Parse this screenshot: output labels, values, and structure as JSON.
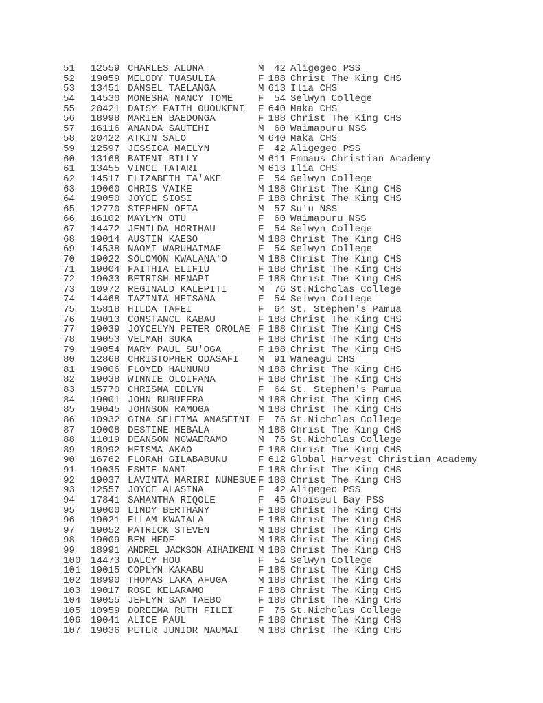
{
  "rows": [
    [
      "51",
      "12559",
      "CHARLES ALUNA",
      "M",
      "42",
      "Aligegeo PSS"
    ],
    [
      "52",
      "19059",
      "MELODY TUASULIA",
      "F",
      "188",
      "Christ The King CHS"
    ],
    [
      "53",
      "13451",
      "DANSEL TAELANGA",
      "M",
      "613",
      "Ilia CHS"
    ],
    [
      "54",
      "14530",
      "MONESHA NANCY TOME",
      "F",
      "54",
      "Selwyn College"
    ],
    [
      "55",
      "20421",
      "DAISY FAITH OUOUKENI",
      "F",
      "640",
      "Maka CHS"
    ],
    [
      "56",
      "18998",
      "MARIEN BAEDONGA",
      "F",
      "188",
      "Christ The King CHS"
    ],
    [
      "57",
      "16116",
      "ANANDA SAUTEHI",
      "M",
      "60",
      "Waimapuru NSS"
    ],
    [
      "58",
      "20422",
      "ATKIN SALO",
      "M",
      "640",
      "Maka CHS"
    ],
    [
      "59",
      "12597",
      "JESSICA MAELYN",
      "F",
      "42",
      "Aligegeo PSS"
    ],
    [
      "60",
      "13168",
      "BATENI BILLY",
      "M",
      "611",
      "Emmaus Christian Academy"
    ],
    [
      "61",
      "13455",
      "VINCE TATARI",
      "M",
      "613",
      "Ilia CHS"
    ],
    [
      "62",
      "14517",
      "ELIZABETH TA'AKE",
      "F",
      "54",
      "Selwyn College"
    ],
    [
      "63",
      "19060",
      "CHRIS VAIKE",
      "M",
      "188",
      "Christ The King CHS"
    ],
    [
      "64",
      "19050",
      "JOYCE SIOSI",
      "F",
      "188",
      "Christ The King CHS"
    ],
    [
      "65",
      "12770",
      "STEPHEN OETA",
      "M",
      "57",
      "Su'u NSS"
    ],
    [
      "66",
      "16102",
      "MAYLYN OTU",
      "F",
      "60",
      "Waimapuru NSS"
    ],
    [
      "67",
      "14472",
      "JENILDA HORIHAU",
      "F",
      "54",
      "Selwyn College"
    ],
    [
      "68",
      "19014",
      "AUSTIN KAESO",
      "M",
      "188",
      "Christ The King CHS"
    ],
    [
      "69",
      "14538",
      "NAOMI WARUHAIMAE",
      "F",
      "54",
      "Selwyn College"
    ],
    [
      "70",
      "19022",
      "SOLOMON KWALANA'O",
      "M",
      "188",
      "Christ The King CHS"
    ],
    [
      "71",
      "19004",
      "FAITHIA ELIFIU",
      "F",
      "188",
      "Christ The King CHS"
    ],
    [
      "72",
      "19033",
      "BETRISH MENAPI",
      "F",
      "188",
      "Christ The King CHS"
    ],
    [
      "73",
      "10972",
      "REGINALD KALEPITI",
      "M",
      "76",
      "St.Nicholas College"
    ],
    [
      "74",
      "14468",
      "TAZINIA HEISANA",
      "F",
      "54",
      "Selwyn College"
    ],
    [
      "75",
      "15818",
      "HILDA TAFEI",
      "F",
      "64",
      "St. Stephen's Pamua"
    ],
    [
      "76",
      "19013",
      "CONSTANCE KABAU",
      "F",
      "188",
      "Christ The King CHS"
    ],
    [
      "77",
      "19039",
      "JOYCELYN PETER OROLAE",
      "F",
      "188",
      "Christ The King CHS"
    ],
    [
      "78",
      "19053",
      "VELMAH SUKA",
      "F",
      "188",
      "Christ The King CHS"
    ],
    [
      "79",
      "19054",
      "MARY PAUL SU'OGA",
      "F",
      "188",
      "Christ The King CHS"
    ],
    [
      "80",
      "12868",
      "CHRISTOPHER ODASAFI",
      "M",
      "91",
      "Waneagu CHS"
    ],
    [
      "81",
      "19006",
      "FLOYED HAUNUNU",
      "M",
      "188",
      "Christ The King CHS"
    ],
    [
      "82",
      "19038",
      "WINNIE OLOIFANA",
      "F",
      "188",
      "Christ The King CHS"
    ],
    [
      "83",
      "15770",
      "CHRISMA EDLYN",
      "F",
      "64",
      "St. Stephen's Pamua"
    ],
    [
      "84",
      "19001",
      "JOHN BUBUFERA",
      "M",
      "188",
      "Christ The King CHS"
    ],
    [
      "85",
      "19045",
      "JOHNSON RAMOGA",
      "M",
      "188",
      "Christ The King CHS"
    ],
    [
      "86",
      "10932",
      "GINA SELEIMA ANASEINI",
      "F",
      "76",
      "St.Nicholas College"
    ],
    [
      "87",
      "19008",
      "DESTINE HEBALA",
      "M",
      "188",
      "Christ The King CHS"
    ],
    [
      "88",
      "11019",
      "DEANSON NGWAERAMO",
      "M",
      "76",
      "St.Nicholas College"
    ],
    [
      "89",
      "18992",
      "HEISMA AKAO",
      "F",
      "188",
      "Christ The King CHS"
    ],
    [
      "90",
      "16762",
      "FLORAH GILABABUNU",
      "F",
      "612",
      "Global Harvest Christian Academy"
    ],
    [
      "91",
      "19035",
      "ESMIE NANI",
      "F",
      "188",
      "Christ The King CHS"
    ],
    [
      "92",
      "19037",
      "LAVINTA MARIRI NUNESUE",
      "F",
      "188",
      "Christ The King CHS"
    ],
    [
      "93",
      "12557",
      "JOYCE ALASINA",
      "F",
      "42",
      "Aligegeo PSS"
    ],
    [
      "94",
      "17841",
      "SAMANTHA RIQOLE",
      "F",
      "45",
      "Choiseul Bay PSS"
    ],
    [
      "95",
      "19000",
      "LINDY BERTHANY",
      "F",
      "188",
      "Christ The King CHS"
    ],
    [
      "96",
      "19021",
      "ELLAM KWAIALA",
      "F",
      "188",
      "Christ The King CHS"
    ],
    [
      "97",
      "19052",
      "PATRICK STEVEN",
      "M",
      "188",
      "Christ The King CHS"
    ],
    [
      "98",
      "19009",
      "BEN HEDE",
      "M",
      "188",
      "Christ The King CHS"
    ],
    [
      "99",
      "18991",
      "ANDREL JACKSON AIHAIKENI",
      "M",
      "188",
      "Christ The King CHS"
    ],
    [
      "100",
      "14473",
      "DALCY HOU",
      "F",
      "54",
      "Selwyn College"
    ],
    [
      "101",
      "19015",
      "COPLYN KAKABU",
      "F",
      "188",
      "Christ The King CHS"
    ],
    [
      "102",
      "18990",
      "THOMAS LAKA AFUGA",
      "M",
      "188",
      "Christ The King CHS"
    ],
    [
      "103",
      "19017",
      "ROSE KELARAMO",
      "F",
      "188",
      "Christ The King CHS"
    ],
    [
      "104",
      "19055",
      "JEFLYN SAM TAEBO",
      "F",
      "188",
      "Christ The King CHS"
    ],
    [
      "105",
      "10959",
      "DOREEMA RUTH FILEI",
      "F",
      "76",
      "St.Nicholas College"
    ],
    [
      "106",
      "19041",
      "ALICE PAUL",
      "F",
      "188",
      "Christ The King CHS"
    ],
    [
      "107",
      "19036",
      "PETER JUNIOR NAUMAI",
      "M",
      "188",
      "Christ The King CHS"
    ]
  ]
}
